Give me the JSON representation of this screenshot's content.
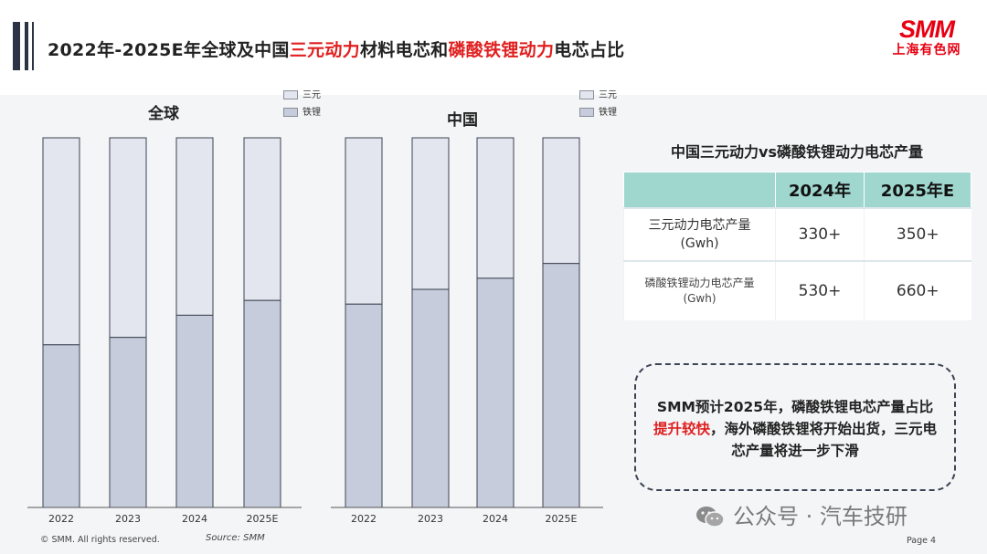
{
  "header": {
    "title_parts": [
      "2022年-2025E年全球及中国",
      "三元动力",
      "材料电芯和",
      "磷酸铁锂动力",
      "电芯占比"
    ]
  },
  "logo": {
    "main": "SMM",
    "sub": "上海有色网"
  },
  "colors": {
    "ternary": "#e3e6ee",
    "lfp": "#c6ccdc",
    "bar_border": "#3d4350",
    "table_header": "#9fd6ce",
    "accent_red": "#e02020"
  },
  "chart_data": [
    {
      "type": "bar",
      "stacked": true,
      "percent": true,
      "title": "全球",
      "categories": [
        "2022",
        "2023",
        "2024",
        "2025E"
      ],
      "series": [
        {
          "name": "铁锂",
          "values": [
            44,
            46,
            52,
            56
          ]
        },
        {
          "name": "三元",
          "values": [
            56,
            54,
            48,
            44
          ]
        }
      ],
      "ylim": [
        0,
        100
      ],
      "legend": [
        "三元",
        "铁锂"
      ],
      "legend_position": "top-right"
    },
    {
      "type": "bar",
      "stacked": true,
      "percent": true,
      "title": "中国",
      "categories": [
        "2022",
        "2023",
        "2024",
        "2025E"
      ],
      "series": [
        {
          "name": "铁锂",
          "values": [
            55,
            59,
            62,
            66
          ]
        },
        {
          "name": "三元",
          "values": [
            45,
            41,
            38,
            34
          ]
        }
      ],
      "ylim": [
        0,
        100
      ],
      "legend": [
        "三元",
        "铁锂"
      ],
      "legend_position": "top-right"
    }
  ],
  "table": {
    "title": "中国三元动力vs磷酸铁锂动力电芯产量",
    "headers": [
      "",
      "2024年",
      "2025年E"
    ],
    "rows": [
      {
        "label": "三元动力电芯产量",
        "unit": "(Gwh)",
        "values": [
          "330+",
          "350+"
        ]
      },
      {
        "label": "磷酸铁锂动力电芯产量",
        "unit": "(Gwh)",
        "values": [
          "530+",
          "660+"
        ]
      }
    ]
  },
  "note": {
    "parts": [
      "SMM预计2025年，磷酸铁锂电芯产量占比",
      "提升较快",
      "，海外磷酸铁锂将开始出货，三元电芯产量将进一步下滑"
    ]
  },
  "footer": {
    "copyright": "© SMM. All rights reserved.",
    "source": "Source: SMM",
    "page": "Page 4"
  },
  "watermark": {
    "text": "公众号 · 汽车技研",
    "icon": "wechat-icon"
  }
}
